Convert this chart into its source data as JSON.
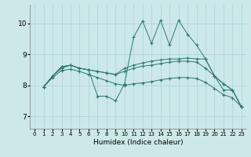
{
  "xlabel": "Humidex (Indice chaleur)",
  "bg_color": "#cce8e8",
  "grid_color": "#aad4d4",
  "line_color": "#2d7a6e",
  "xlim": [
    -0.5,
    23.5
  ],
  "ylim": [
    6.6,
    10.6
  ],
  "xticks": [
    0,
    1,
    2,
    3,
    4,
    5,
    6,
    7,
    8,
    9,
    10,
    11,
    12,
    13,
    14,
    15,
    16,
    17,
    18,
    19,
    20,
    21,
    22,
    23
  ],
  "yticks": [
    7,
    8,
    9,
    10
  ],
  "lines": [
    {
      "x": [
        1,
        2,
        3,
        4,
        5,
        6,
        7,
        8,
        9,
        10,
        11,
        12,
        13,
        14,
        15,
        16,
        17,
        18,
        19,
        20,
        21,
        22,
        23
      ],
      "y": [
        7.95,
        8.3,
        8.55,
        8.65,
        8.55,
        8.5,
        7.65,
        7.65,
        7.5,
        8.05,
        9.55,
        10.08,
        9.35,
        10.1,
        9.3,
        10.1,
        9.65,
        9.3,
        8.85,
        8.3,
        8.05,
        7.85,
        7.3
      ]
    },
    {
      "x": [
        1,
        2,
        3,
        4,
        5,
        6,
        7,
        8,
        9,
        10,
        11,
        12,
        13,
        14,
        15,
        16,
        17,
        18,
        19,
        20,
        21,
        22,
        23
      ],
      "y": [
        7.95,
        8.3,
        8.6,
        8.65,
        8.55,
        8.5,
        8.45,
        8.4,
        8.35,
        8.55,
        8.65,
        8.72,
        8.78,
        8.82,
        8.85,
        8.85,
        8.88,
        8.85,
        8.85,
        8.3,
        8.05,
        7.85,
        7.3
      ]
    },
    {
      "x": [
        1,
        2,
        3,
        4,
        5,
        6,
        7,
        8,
        9,
        10,
        11,
        12,
        13,
        14,
        15,
        16,
        17,
        18,
        19,
        20,
        21,
        22,
        23
      ],
      "y": [
        7.95,
        8.3,
        8.6,
        8.65,
        8.55,
        8.5,
        8.45,
        8.4,
        8.35,
        8.45,
        8.55,
        8.62,
        8.65,
        8.7,
        8.75,
        8.78,
        8.78,
        8.75,
        8.55,
        8.3,
        7.85,
        7.85,
        7.3
      ]
    },
    {
      "x": [
        1,
        2,
        3,
        4,
        5,
        6,
        7,
        8,
        9,
        10,
        11,
        12,
        13,
        14,
        15,
        16,
        17,
        18,
        19,
        20,
        21,
        22,
        23
      ],
      "y": [
        7.95,
        8.25,
        8.48,
        8.52,
        8.45,
        8.35,
        8.25,
        8.15,
        8.05,
        8.0,
        8.05,
        8.08,
        8.12,
        8.18,
        8.22,
        8.25,
        8.25,
        8.22,
        8.1,
        7.9,
        7.7,
        7.6,
        7.3
      ]
    }
  ]
}
